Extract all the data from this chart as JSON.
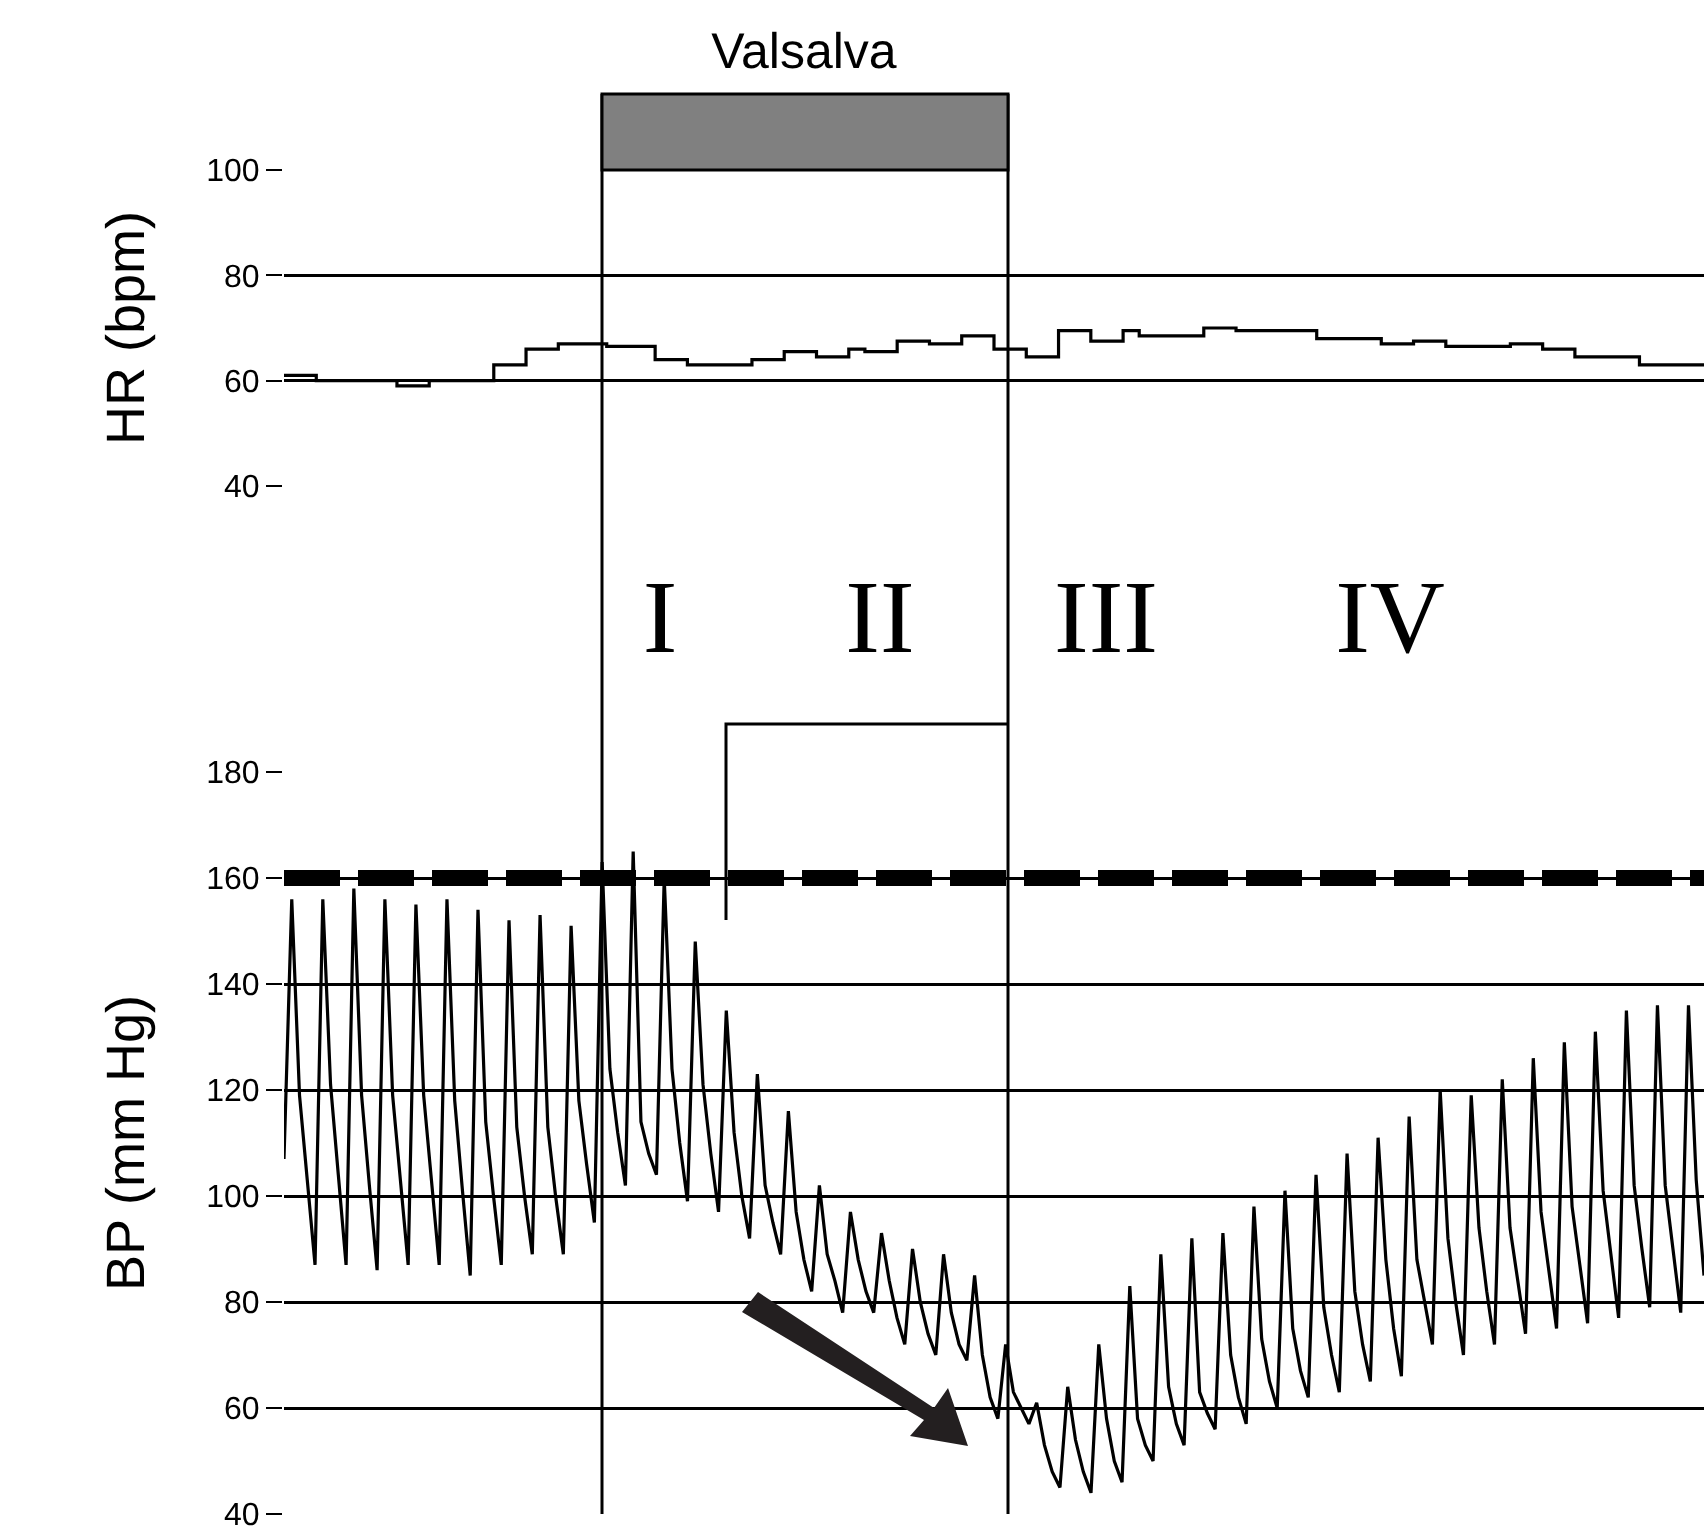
{
  "chart_data": [
    {
      "type": "step",
      "ylabel": "HR (bpm)",
      "annotations": [
        "Valsalva"
      ],
      "ylim": [
        40,
        100
      ],
      "yticks": [
        40,
        60,
        80,
        100
      ],
      "grid": "y",
      "tick_labels": "y",
      "line_style": "solid",
      "categories": [
        null,
        null,
        null,
        null,
        null,
        null,
        null,
        null,
        null,
        null,
        null,
        null,
        null,
        null,
        null,
        null,
        null,
        null,
        null,
        null,
        null,
        null,
        null,
        null,
        null,
        null,
        null,
        null,
        null,
        null,
        null,
        null,
        null,
        null,
        null,
        null,
        null,
        null,
        null,
        null,
        null,
        null,
        null,
        null,
        null,
        null,
        null,
        null,
        null,
        null,
        null,
        null,
        null,
        null,
        null,
        null,
        null,
        null,
        null,
        null,
        null,
        null,
        null,
        null,
        null,
        null,
        null,
        null,
        null,
        null,
        null,
        null,
        null,
        null,
        null,
        null,
        null,
        null,
        null,
        null,
        null,
        null,
        null,
        null,
        null,
        null,
        null,
        null,
        null
      ],
      "series": [
        {
          "color": "#000000",
          "values": [
            61,
            61,
            60,
            60,
            60,
            60,
            60,
            59,
            59,
            60,
            60,
            60,
            60,
            63,
            63,
            66,
            66,
            67,
            67,
            67,
            66.5,
            66.5,
            66.5,
            64,
            64,
            63,
            63,
            63,
            63,
            64,
            64,
            65.5,
            65.5,
            64.5,
            64.5,
            66,
            65.5,
            65.5,
            67.5,
            67.5,
            67,
            67,
            68.5,
            68.5,
            66,
            66,
            64.5,
            64.5,
            69.5,
            69.5,
            67.5,
            67.5,
            69.5,
            68.5,
            68.5,
            68.5,
            68.5,
            70,
            70,
            69.5,
            69.5,
            69.5,
            69.5,
            69.5,
            68,
            68,
            68,
            68,
            67,
            67,
            67.5,
            67.5,
            66.5,
            66.5,
            66.5,
            66.5,
            67,
            67,
            66,
            66,
            64.5,
            64.5,
            64.5,
            64.5,
            63,
            63,
            63,
            63,
            63
          ]
        }
      ]
    },
    {
      "type": "line",
      "ylabel": "BP (mm Hg)",
      "ylim": [
        40,
        180
      ],
      "yticks": [
        40,
        60,
        80,
        100,
        120,
        140,
        160,
        180
      ],
      "grid": "y",
      "tick_labels": "y",
      "line_style": "solid",
      "ref_lines": [
        {
          "axis": "y",
          "value": 160,
          "line_style": "dashed",
          "color": "#000000"
        }
      ],
      "annotations": [
        "I",
        "II",
        "III",
        "IV"
      ],
      "categories": [
        null,
        null,
        null,
        null,
        null,
        null,
        null,
        null,
        null,
        null,
        null,
        null,
        null,
        null,
        null,
        null,
        null,
        null,
        null,
        null,
        null,
        null,
        null,
        null,
        null,
        null,
        null,
        null,
        null,
        null,
        null,
        null,
        null,
        null,
        null,
        null,
        null,
        null,
        null,
        null,
        null,
        null,
        null,
        null,
        null,
        null,
        null,
        null,
        null,
        null,
        null,
        null,
        null,
        null,
        null,
        null,
        null,
        null,
        null,
        null,
        null,
        null,
        null,
        null,
        null,
        null,
        null,
        null,
        null,
        null,
        null,
        null,
        null,
        null,
        null,
        null,
        null,
        null,
        null,
        null,
        null,
        null,
        null,
        null,
        null,
        null,
        null,
        null,
        null,
        null,
        null,
        null,
        null,
        null,
        null,
        null,
        null,
        null,
        null,
        null,
        null,
        null,
        null,
        null,
        null,
        null,
        null,
        null,
        null,
        null,
        null,
        null,
        null,
        null,
        null,
        null,
        null,
        null,
        null,
        null,
        null,
        null,
        null,
        null,
        null,
        null,
        null,
        null,
        null,
        null,
        null,
        null,
        null,
        null,
        null,
        null,
        null,
        null,
        null,
        null,
        null,
        null,
        null,
        null,
        null,
        null,
        null,
        null,
        null,
        null,
        null,
        null,
        null,
        null,
        null,
        null,
        null,
        null,
        null,
        null,
        null,
        null,
        null,
        null,
        null,
        null,
        null,
        null,
        null,
        null,
        null,
        null,
        null,
        null,
        null,
        null,
        null,
        null,
        null,
        null,
        null,
        null,
        null,
        null
      ],
      "series": [
        {
          "color": "#000000",
          "values": [
            107,
            156,
            119,
            103,
            87,
            156,
            121,
            104,
            87,
            158,
            119,
            102,
            86,
            156,
            119,
            103,
            87,
            155,
            119,
            103,
            87,
            156,
            118,
            101,
            85,
            154,
            114,
            100,
            87,
            152,
            113,
            100,
            89,
            153,
            113,
            100,
            89,
            151,
            118,
            106,
            95,
            163,
            124,
            112,
            102,
            165,
            114,
            108,
            104,
            160,
            124,
            110,
            99,
            148,
            121,
            108,
            97,
            135,
            112,
            100,
            92,
            123,
            102,
            95,
            89,
            116,
            97,
            88,
            82,
            102,
            89,
            84,
            78,
            97,
            88,
            82,
            78,
            93,
            84,
            77,
            72,
            90,
            80,
            74,
            70,
            89,
            78,
            72,
            69,
            85,
            70,
            62,
            58,
            72,
            63,
            60,
            57,
            61,
            53,
            48,
            45,
            64,
            54,
            48,
            44,
            72,
            58,
            50,
            46,
            83,
            58,
            53,
            50,
            89,
            64,
            57,
            53,
            92,
            63,
            59,
            56,
            93,
            70,
            62,
            57,
            98,
            73,
            65,
            60,
            101,
            75,
            67,
            62,
            104,
            79,
            70,
            63,
            108,
            82,
            72,
            65,
            111,
            88,
            75,
            66,
            115,
            88,
            80,
            72,
            120,
            92,
            80,
            70,
            119,
            94,
            82,
            72,
            122,
            94,
            84,
            74,
            126,
            97,
            86,
            75,
            129,
            98,
            87,
            76,
            131,
            101,
            89,
            77,
            135,
            102,
            90,
            79,
            136,
            102,
            90,
            78,
            136,
            103,
            85
          ]
        }
      ]
    }
  ]
}
